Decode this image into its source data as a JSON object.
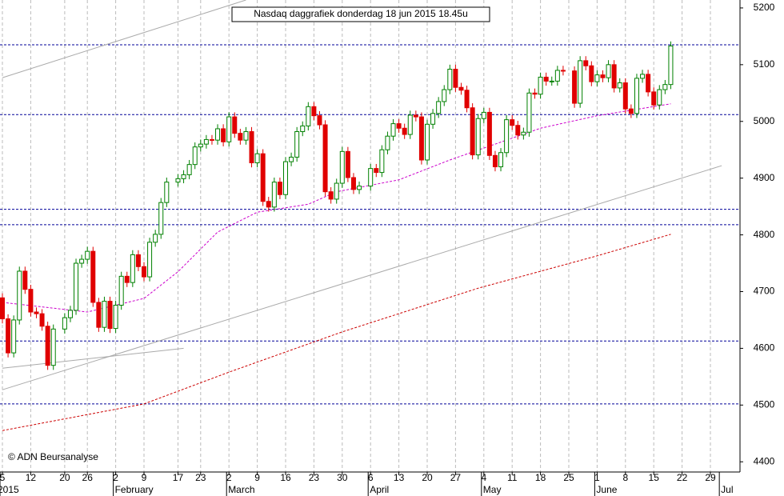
{
  "chart_data": {
    "type": "candlestick",
    "title": "Nasdaq daggrafiek donderdag 18 jun 2015 18.45u",
    "source": "© ADN Beursanalyse",
    "x": [
      "2015-01-05",
      "2015-01-06",
      "2015-01-07",
      "2015-01-08",
      "2015-01-09",
      "2015-01-12",
      "2015-01-13",
      "2015-01-14",
      "2015-01-15",
      "2015-01-16",
      "2015-01-20",
      "2015-01-21",
      "2015-01-22",
      "2015-01-23",
      "2015-01-26",
      "2015-01-27",
      "2015-01-28",
      "2015-01-29",
      "2015-01-30",
      "2015-02-02",
      "2015-02-03",
      "2015-02-04",
      "2015-02-05",
      "2015-02-06",
      "2015-02-09",
      "2015-02-10",
      "2015-02-11",
      "2015-02-12",
      "2015-02-13",
      "2015-02-17",
      "2015-02-18",
      "2015-02-19",
      "2015-02-20",
      "2015-02-23",
      "2015-02-24",
      "2015-02-25",
      "2015-02-26",
      "2015-02-27",
      "2015-03-02",
      "2015-03-03",
      "2015-03-04",
      "2015-03-05",
      "2015-03-06",
      "2015-03-09",
      "2015-03-10",
      "2015-03-11",
      "2015-03-12",
      "2015-03-13",
      "2015-03-16",
      "2015-03-17",
      "2015-03-18",
      "2015-03-19",
      "2015-03-20",
      "2015-03-23",
      "2015-03-24",
      "2015-03-25",
      "2015-03-26",
      "2015-03-27",
      "2015-03-30",
      "2015-03-31",
      "2015-04-01",
      "2015-04-02",
      "2015-04-06",
      "2015-04-07",
      "2015-04-08",
      "2015-04-09",
      "2015-04-10",
      "2015-04-13",
      "2015-04-14",
      "2015-04-15",
      "2015-04-16",
      "2015-04-17",
      "2015-04-20",
      "2015-04-21",
      "2015-04-22",
      "2015-04-23",
      "2015-04-24",
      "2015-04-27",
      "2015-04-28",
      "2015-04-29",
      "2015-04-30",
      "2015-05-01",
      "2015-05-04",
      "2015-05-05",
      "2015-05-06",
      "2015-05-07",
      "2015-05-08",
      "2015-05-11",
      "2015-05-12",
      "2015-05-13",
      "2015-05-14",
      "2015-05-15",
      "2015-05-18",
      "2015-05-19",
      "2015-05-20",
      "2015-05-21",
      "2015-05-22",
      "2015-05-26",
      "2015-05-27",
      "2015-05-28",
      "2015-05-29",
      "2015-06-01",
      "2015-06-02",
      "2015-06-03",
      "2015-06-04",
      "2015-06-05",
      "2015-06-08",
      "2015-06-09",
      "2015-06-10",
      "2015-06-11",
      "2015-06-12",
      "2015-06-15",
      "2015-06-16",
      "2015-06-17",
      "2015-06-18"
    ],
    "open": [
      4689,
      4652,
      4592,
      4650,
      4736,
      4704,
      4664,
      4661,
      4639,
      4570,
      4634,
      4654,
      4667,
      4750,
      4757,
      4771,
      4681,
      4637,
      4683,
      4635,
      4676,
      4727,
      4716,
      4765,
      4744,
      4726,
      4787,
      4801,
      4857,
      4893,
      4899,
      4906,
      4924,
      4955,
      4960,
      4968,
      4967,
      4987,
      4964,
      5008,
      4979,
      4967,
      4982,
      4927,
      4943,
      4859,
      4849,
      4893,
      4871,
      4929,
      4937,
      4982,
      4992,
      5026,
      5010,
      4994,
      4876,
      4863,
      4891,
      4947,
      4901,
      4880,
      4886,
      4917,
      4910,
      4950,
      4974,
      4996,
      4988,
      4977,
      5011,
      5008,
      4932,
      4995,
      5014,
      5035,
      5056,
      5092,
      5060,
      5055,
      5024,
      4941,
      5005,
      5016,
      4940,
      4920,
      4945,
      5003,
      4993,
      4976,
      4981,
      5050,
      5048,
      5078,
      5071,
      5071,
      5090,
      5089,
      5032,
      5107,
      5098,
      5070,
      5082,
      5077,
      5100,
      5059,
      5068,
      5022,
      5014,
      5076,
      5083,
      5052,
      5029,
      5056,
      5065
    ],
    "high": [
      4697,
      4660,
      4658,
      4744,
      4744,
      4712,
      4672,
      4669,
      4647,
      4642,
      4662,
      4675,
      4758,
      4765,
      4779,
      4779,
      4689,
      4691,
      4691,
      4684,
      4735,
      4735,
      4773,
      4773,
      4752,
      4795,
      4809,
      4865,
      4901,
      4907,
      4914,
      4932,
      4963,
      4968,
      4976,
      4976,
      4995,
      4995,
      5016,
      5016,
      4987,
      4990,
      4990,
      4951,
      4951,
      4867,
      4901,
      4901,
      4937,
      4945,
      4990,
      5000,
      5034,
      5034,
      5018,
      5002,
      4884,
      4899,
      4955,
      4955,
      4909,
      4894,
      4925,
      4925,
      4958,
      4982,
      5004,
      5004,
      4996,
      5019,
      5019,
      5016,
      5003,
      5022,
      5043,
      5064,
      5100,
      5100,
      5068,
      5063,
      5032,
      5013,
      5024,
      5024,
      4948,
      4953,
      5011,
      5011,
      5001,
      4989,
      5058,
      5058,
      5086,
      5086,
      5079,
      5098,
      5098,
      5097,
      5115,
      5115,
      5106,
      5090,
      5090,
      5108,
      5108,
      5076,
      5076,
      5030,
      5084,
      5091,
      5091,
      5060,
      5064,
      5073,
      5141
    ],
    "low": [
      4644,
      4584,
      4584,
      4642,
      4696,
      4656,
      4653,
      4631,
      4562,
      4562,
      4626,
      4646,
      4659,
      4742,
      4749,
      4673,
      4629,
      4629,
      4627,
      4627,
      4668,
      4708,
      4708,
      4736,
      4718,
      4718,
      4779,
      4793,
      4849,
      4885,
      4891,
      4898,
      4916,
      4947,
      4952,
      4959,
      4959,
      4956,
      4956,
      4971,
      4959,
      4959,
      4919,
      4919,
      4851,
      4841,
      4841,
      4863,
      4863,
      4921,
      4929,
      4974,
      4984,
      5002,
      4986,
      4868,
      4855,
      4855,
      4883,
      4893,
      4872,
      4872,
      4878,
      4902,
      4902,
      4942,
      4966,
      4980,
      4969,
      4969,
      5000,
      4924,
      4924,
      4987,
      5006,
      5027,
      5048,
      5052,
      5047,
      5016,
      4933,
      4933,
      4997,
      4932,
      4912,
      4912,
      4937,
      4985,
      4968,
      4968,
      4973,
      5040,
      5040,
      5063,
      5063,
      5063,
      5081,
      5024,
      5024,
      5090,
      5062,
      5062,
      5069,
      5069,
      5051,
      5051,
      5014,
      5006,
      5006,
      5068,
      5044,
      5021,
      5021,
      5048,
      5057
    ],
    "close": [
      4652,
      4592,
      4650,
      4736,
      4704,
      4664,
      4661,
      4639,
      4570,
      4634,
      4654,
      4667,
      4750,
      4757,
      4771,
      4681,
      4637,
      4683,
      4635,
      4676,
      4727,
      4716,
      4765,
      4744,
      4726,
      4787,
      4801,
      4857,
      4893,
      4899,
      4906,
      4924,
      4955,
      4960,
      4968,
      4967,
      4987,
      4964,
      5008,
      4979,
      4967,
      4982,
      4927,
      4943,
      4859,
      4849,
      4893,
      4871,
      4929,
      4937,
      4982,
      4992,
      5026,
      5010,
      4994,
      4876,
      4863,
      4891,
      4947,
      4901,
      4880,
      4886,
      4917,
      4910,
      4950,
      4974,
      4996,
      4988,
      4977,
      5011,
      5008,
      4932,
      4995,
      5014,
      5035,
      5056,
      5092,
      5060,
      5055,
      5024,
      4941,
      5005,
      5016,
      4940,
      4920,
      4945,
      5003,
      4993,
      4976,
      4981,
      5050,
      5048,
      5078,
      5071,
      5071,
      5090,
      5089,
      5032,
      5107,
      5098,
      5070,
      5082,
      5077,
      5100,
      5059,
      5068,
      5022,
      5014,
      5076,
      5083,
      5052,
      5029,
      5056,
      5065,
      5133
    ],
    "up_color": "#008000",
    "down_color": "#e00000",
    "ylim": [
      4382,
      5214
    ],
    "yticks": [
      4400,
      4500,
      4600,
      4700,
      4800,
      4900,
      5000,
      5100,
      5200
    ],
    "xticks": [
      {
        "value": "2015-01-05",
        "label": "5"
      },
      {
        "value": "2015-01-12",
        "label": "12"
      },
      {
        "value": "2015-01-20",
        "label": "20"
      },
      {
        "value": "2015-01-26",
        "label": "26"
      },
      {
        "value": "2015-02-02",
        "label": "2"
      },
      {
        "value": "2015-02-09",
        "label": "9"
      },
      {
        "value": "2015-02-17",
        "label": "17"
      },
      {
        "value": "2015-02-23",
        "label": "23"
      },
      {
        "value": "2015-03-02",
        "label": "2"
      },
      {
        "value": "2015-03-09",
        "label": "9"
      },
      {
        "value": "2015-03-16",
        "label": "16"
      },
      {
        "value": "2015-03-23",
        "label": "23"
      },
      {
        "value": "2015-03-30",
        "label": "30"
      },
      {
        "value": "2015-04-06",
        "label": "6"
      },
      {
        "value": "2015-04-13",
        "label": "13"
      },
      {
        "value": "2015-04-20",
        "label": "20"
      },
      {
        "value": "2015-04-27",
        "label": "27"
      },
      {
        "value": "2015-05-04",
        "label": "4"
      },
      {
        "value": "2015-05-11",
        "label": "11"
      },
      {
        "value": "2015-05-18",
        "label": "18"
      },
      {
        "value": "2015-05-25",
        "label": "25"
      },
      {
        "value": "2015-06-01",
        "label": "1"
      },
      {
        "value": "2015-06-08",
        "label": "8"
      },
      {
        "value": "2015-06-15",
        "label": "15"
      },
      {
        "value": "2015-06-22",
        "label": "22"
      },
      {
        "value": "2015-06-29",
        "label": "29"
      }
    ],
    "month_labels": [
      {
        "value": "2015-01-05",
        "label": "2015"
      },
      {
        "value": "2015-02-02",
        "label": "February"
      },
      {
        "value": "2015-03-02",
        "label": "March"
      },
      {
        "value": "2015-04-06",
        "label": "April"
      },
      {
        "value": "2015-05-04",
        "label": "May"
      },
      {
        "value": "2015-06-01",
        "label": "June"
      },
      {
        "value": "2015-07-01",
        "label": "Jul"
      }
    ],
    "levels": {
      "color": "#000099",
      "values": [
        5135,
        5012,
        4845,
        4818,
        4613,
        4502
      ]
    },
    "overlays": [
      {
        "color": "#cc00cc",
        "x": [
          "2015-01-05",
          "2015-01-26",
          "2015-02-09",
          "2015-02-17",
          "2015-02-26",
          "2015-03-09",
          "2015-03-20",
          "2015-03-27",
          "2015-04-13",
          "2015-04-24",
          "2015-05-04",
          "2015-05-18",
          "2015-06-01",
          "2015-06-18"
        ],
        "values": [
          4681,
          4664,
          4688,
          4735,
          4805,
          4840,
          4854,
          4876,
          4897,
          4932,
          4953,
          4988,
          5010,
          5031
        ]
      },
      {
        "color": "#cc0000",
        "x": [
          "2015-01-05",
          "2015-02-09",
          "2015-03-02",
          "2015-03-30",
          "2015-05-01",
          "2015-06-01",
          "2015-06-18"
        ],
        "values": [
          4455,
          4502,
          4558,
          4629,
          4706,
          4763,
          4801
        ]
      },
      {
        "color": "#aaaaaa",
        "x": [
          "2015-01-05",
          "2015-03-05"
        ],
        "values": [
          5077,
          5214
        ]
      },
      {
        "color": "#aaaaaa",
        "x": [
          "2015-01-05",
          "2015-07-01"
        ],
        "values": [
          4527,
          4922
        ]
      },
      {
        "color": "#aaaaaa",
        "x": [
          "2015-01-05",
          "2015-02-18"
        ],
        "values": [
          4565,
          4600
        ]
      }
    ]
  }
}
